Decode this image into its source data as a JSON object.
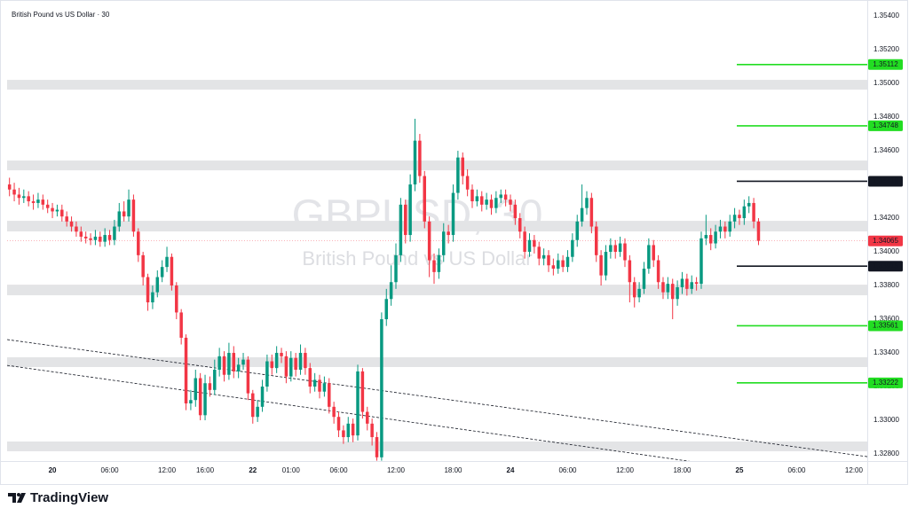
{
  "chart_data": {
    "type": "candlestick",
    "title": "British Pound vs US Dollar · 30",
    "watermark": "GBPUSD, 30",
    "watermark_subtitle": "British Pound vs US Dollar",
    "up_color": "#089981",
    "down_color": "#f23645",
    "xlim": [
      -0.5,
      179.8
    ],
    "ylim": [
      1.32758,
      1.35453
    ],
    "xticks": [
      {
        "value": 9,
        "label": "20"
      },
      {
        "value": 21,
        "label": "06:00"
      },
      {
        "value": 33,
        "label": "12:00"
      },
      {
        "value": 41,
        "label": "16:00"
      },
      {
        "value": 51,
        "label": "22"
      },
      {
        "value": 59,
        "label": "01:00"
      },
      {
        "value": 69,
        "label": "06:00"
      },
      {
        "value": 81,
        "label": "12:00"
      },
      {
        "value": 93,
        "label": "18:00"
      },
      {
        "value": 105,
        "label": "24"
      },
      {
        "value": 117,
        "label": "06:00"
      },
      {
        "value": 129,
        "label": "12:00"
      },
      {
        "value": 141,
        "label": "18:00"
      },
      {
        "value": 153,
        "label": "25"
      },
      {
        "value": 165,
        "label": "06:00"
      },
      {
        "value": 177,
        "label": "12:00"
      }
    ],
    "yticks": [
      {
        "value": 1.354,
        "label": "1.35400"
      },
      {
        "value": 1.352,
        "label": "1.35200"
      },
      {
        "value": 1.35,
        "label": "1.35000"
      },
      {
        "value": 1.348,
        "label": "1.34800"
      },
      {
        "value": 1.346,
        "label": "1.34600"
      },
      {
        "value": 1.344,
        "label": "1.34400"
      },
      {
        "value": 1.342,
        "label": "1.34200"
      },
      {
        "value": 1.34,
        "label": "1.34000"
      },
      {
        "value": 1.338,
        "label": "1.33800"
      },
      {
        "value": 1.336,
        "label": "1.33600"
      },
      {
        "value": 1.334,
        "label": "1.33400"
      },
      {
        "value": 1.332,
        "label": "1.33200"
      },
      {
        "value": 1.33,
        "label": "1.33000"
      },
      {
        "value": 1.328,
        "label": "1.32800"
      }
    ],
    "levels": [
      {
        "value": 1.35112,
        "color": "#22dd22"
      },
      {
        "value": 1.34748,
        "color": "#22dd22"
      },
      {
        "value": 1.34419,
        "color": "#131722"
      },
      {
        "value": 1.33915,
        "color": "#131722"
      },
      {
        "value": 1.33561,
        "color": "#22dd22"
      },
      {
        "value": 1.33222,
        "color": "#22dd22"
      }
    ],
    "zones": [
      [
        1.34963,
        1.35021
      ],
      [
        1.34484,
        1.34542
      ],
      [
        1.34121,
        1.34184
      ],
      [
        1.33742,
        1.33805
      ],
      [
        1.33316,
        1.33374
      ],
      [
        1.32816,
        1.32874
      ]
    ],
    "trendlines": [
      {
        "x": [
          -0.5,
          179.8
        ],
        "y": [
          1.33479,
          1.32784
        ]
      },
      {
        "x": [
          -0.5,
          144.9
        ],
        "y": [
          1.33326,
          1.32747
        ]
      }
    ],
    "open": [
      1.344,
      1.3437,
      1.3434,
      1.3432,
      1.3433,
      1.343,
      1.3429,
      1.3431,
      1.3428,
      1.3426,
      1.3424,
      1.3425,
      1.3421,
      1.3418,
      1.3415,
      1.3412,
      1.3409,
      1.3408,
      1.3407,
      1.3409,
      1.3406,
      1.341,
      1.3407,
      1.3415,
      1.3424,
      1.3421,
      1.3431,
      1.3412,
      1.3398,
      1.3385,
      1.337,
      1.3376,
      1.3385,
      1.3391,
      1.3397,
      1.338,
      1.3364,
      1.3349,
      1.331,
      1.3312,
      1.3325,
      1.3303,
      1.3322,
      1.3318,
      1.333,
      1.3338,
      1.3327,
      1.334,
      1.3329,
      1.3333,
      1.3336,
      1.3316,
      1.3302,
      1.3308,
      1.332,
      1.3335,
      1.3331,
      1.334,
      1.3338,
      1.3326,
      1.3337,
      1.333,
      1.334,
      1.3331,
      1.332,
      1.3324,
      1.3317,
      1.3322,
      1.3308,
      1.3302,
      1.3294,
      1.329,
      1.3298,
      1.3291,
      1.3329,
      1.3305,
      1.3298,
      1.329,
      1.3278,
      1.336,
      1.3372,
      1.3382,
      1.3398,
      1.3428,
      1.341,
      1.344,
      1.3466,
      1.3445,
      1.3418,
      1.3395,
      1.3388,
      1.3398,
      1.3412,
      1.341,
      1.3435,
      1.3456,
      1.3445,
      1.3437,
      1.343,
      1.3433,
      1.3428,
      1.3431,
      1.3426,
      1.3432,
      1.3434,
      1.3431,
      1.3428,
      1.342,
      1.3412,
      1.34,
      1.3407,
      1.3403,
      1.3396,
      1.3398,
      1.3392,
      1.339,
      1.3395,
      1.3391,
      1.3397,
      1.3407,
      1.3418,
      1.3426,
      1.3432,
      1.3415,
      1.3398,
      1.3386,
      1.34,
      1.3404,
      1.34,
      1.3405,
      1.3395,
      1.3382,
      1.3373,
      1.3378,
      1.339,
      1.3404,
      1.3395,
      1.3382,
      1.3376,
      1.3381,
      1.3372,
      1.3379,
      1.3384,
      1.3378,
      1.3382,
      1.3381,
      1.3408,
      1.341,
      1.3405,
      1.3412,
      1.3415,
      1.3412,
      1.3418,
      1.3422,
      1.342,
      1.3427,
      1.3429,
      1.3418
    ],
    "high": [
      1.3444,
      1.3441,
      1.3438,
      1.3437,
      1.3436,
      1.3434,
      1.3435,
      1.3434,
      1.3431,
      1.3429,
      1.3428,
      1.3428,
      1.3424,
      1.3421,
      1.3418,
      1.3415,
      1.3412,
      1.3411,
      1.3413,
      1.3412,
      1.3414,
      1.3413,
      1.3419,
      1.3429,
      1.343,
      1.3437,
      1.3434,
      1.3414,
      1.34,
      1.3387,
      1.338,
      1.3389,
      1.3395,
      1.3403,
      1.3399,
      1.3382,
      1.3366,
      1.3351,
      1.3318,
      1.333,
      1.3328,
      1.3327,
      1.3326,
      1.3336,
      1.3343,
      1.3341,
      1.3346,
      1.3344,
      1.3337,
      1.334,
      1.3338,
      1.3318,
      1.3312,
      1.3324,
      1.3339,
      1.3339,
      1.3344,
      1.3343,
      1.3341,
      1.3341,
      1.334,
      1.3345,
      1.3343,
      1.3334,
      1.3328,
      1.3327,
      1.3326,
      1.3325,
      1.3311,
      1.3305,
      1.3297,
      1.3302,
      1.3301,
      1.3333,
      1.3331,
      1.3308,
      1.3301,
      1.3293,
      1.3364,
      1.3378,
      1.3392,
      1.3405,
      1.3432,
      1.3431,
      1.3446,
      1.3479,
      1.347,
      1.3448,
      1.3421,
      1.3399,
      1.3402,
      1.3417,
      1.3416,
      1.344,
      1.346,
      1.3459,
      1.3449,
      1.344,
      1.3437,
      1.3436,
      1.3435,
      1.3434,
      1.3436,
      1.3437,
      1.3437,
      1.3434,
      1.3431,
      1.3423,
      1.3415,
      1.3411,
      1.341,
      1.3406,
      1.3402,
      1.3401,
      1.3396,
      1.3399,
      1.3398,
      1.3401,
      1.3411,
      1.3422,
      1.344,
      1.3436,
      1.3435,
      1.3418,
      1.3401,
      1.3404,
      1.3408,
      1.3407,
      1.3409,
      1.3408,
      1.3398,
      1.3385,
      1.3382,
      1.3394,
      1.3408,
      1.3407,
      1.3398,
      1.3385,
      1.3385,
      1.3384,
      1.3383,
      1.3388,
      1.3387,
      1.3386,
      1.3385,
      1.3412,
      1.3422,
      1.3414,
      1.3416,
      1.3419,
      1.3418,
      1.3422,
      1.3426,
      1.3425,
      1.3431,
      1.3433,
      1.3432,
      1.342
    ],
    "low": [
      1.3433,
      1.343,
      1.3428,
      1.3429,
      1.3427,
      1.3425,
      1.3426,
      1.3425,
      1.3423,
      1.342,
      1.3421,
      1.3418,
      1.3415,
      1.3412,
      1.3409,
      1.3406,
      1.3405,
      1.3404,
      1.3404,
      1.3403,
      1.3403,
      1.3404,
      1.3404,
      1.3412,
      1.3418,
      1.3418,
      1.3409,
      1.3394,
      1.338,
      1.3365,
      1.3366,
      1.3373,
      1.3382,
      1.3388,
      1.3377,
      1.336,
      1.3345,
      1.3306,
      1.3306,
      1.3308,
      1.33,
      1.33,
      1.3314,
      1.3315,
      1.3326,
      1.3323,
      1.3324,
      1.3325,
      1.3325,
      1.333,
      1.3312,
      1.3298,
      1.3299,
      1.3305,
      1.3317,
      1.3327,
      1.3328,
      1.3334,
      1.3322,
      1.3323,
      1.3326,
      1.3327,
      1.3327,
      1.3316,
      1.3317,
      1.3313,
      1.3314,
      1.3304,
      1.3298,
      1.329,
      1.3286,
      1.3287,
      1.3287,
      1.3288,
      1.3301,
      1.3294,
      1.3285,
      1.3276,
      1.3276,
      1.3356,
      1.3368,
      1.3378,
      1.3394,
      1.3405,
      1.3406,
      1.3436,
      1.3441,
      1.3414,
      1.3385,
      1.3381,
      1.3384,
      1.3394,
      1.3405,
      1.3406,
      1.3431,
      1.344,
      1.3433,
      1.3426,
      1.3427,
      1.3424,
      1.3425,
      1.3422,
      1.3423,
      1.3429,
      1.3427,
      1.3424,
      1.3416,
      1.3408,
      1.3396,
      1.3397,
      1.3399,
      1.3392,
      1.3392,
      1.3388,
      1.3386,
      1.3387,
      1.3388,
      1.3388,
      1.3394,
      1.3403,
      1.3415,
      1.3422,
      1.3411,
      1.3394,
      1.338,
      1.3383,
      1.3396,
      1.3396,
      1.3397,
      1.3391,
      1.337,
      1.3367,
      1.337,
      1.3375,
      1.3387,
      1.3391,
      1.3378,
      1.3372,
      1.3372,
      1.336,
      1.3368,
      1.3375,
      1.3374,
      1.3375,
      1.3377,
      1.3378,
      1.3404,
      1.3401,
      1.3402,
      1.3408,
      1.3408,
      1.3409,
      1.3414,
      1.3416,
      1.3416,
      1.3423,
      1.3414,
      1.3404
    ],
    "close": [
      1.3437,
      1.3434,
      1.3432,
      1.3433,
      1.343,
      1.3429,
      1.3431,
      1.3428,
      1.3426,
      1.3424,
      1.3425,
      1.3421,
      1.3418,
      1.3415,
      1.3412,
      1.3409,
      1.3408,
      1.3407,
      1.3409,
      1.3406,
      1.341,
      1.3407,
      1.3415,
      1.3424,
      1.3421,
      1.3431,
      1.3412,
      1.3398,
      1.3385,
      1.337,
      1.3376,
      1.3385,
      1.3391,
      1.3397,
      1.338,
      1.3364,
      1.3349,
      1.331,
      1.3312,
      1.3325,
      1.3303,
      1.3322,
      1.3318,
      1.333,
      1.3338,
      1.3327,
      1.334,
      1.3329,
      1.3333,
      1.3336,
      1.3316,
      1.3302,
      1.3308,
      1.332,
      1.3335,
      1.3331,
      1.334,
      1.3338,
      1.3326,
      1.3337,
      1.333,
      1.334,
      1.3331,
      1.332,
      1.3324,
      1.3317,
      1.3322,
      1.3308,
      1.3302,
      1.3294,
      1.329,
      1.3298,
      1.3291,
      1.3329,
      1.3305,
      1.3298,
      1.329,
      1.3278,
      1.336,
      1.3372,
      1.3382,
      1.3398,
      1.3428,
      1.341,
      1.344,
      1.3466,
      1.3445,
      1.3418,
      1.3395,
      1.3388,
      1.3398,
      1.3412,
      1.341,
      1.3435,
      1.3456,
      1.3445,
      1.3437,
      1.343,
      1.3433,
      1.3428,
      1.3431,
      1.3426,
      1.3432,
      1.3434,
      1.3431,
      1.3428,
      1.342,
      1.3412,
      1.34,
      1.3407,
      1.3403,
      1.3396,
      1.3398,
      1.3392,
      1.339,
      1.3395,
      1.3391,
      1.3397,
      1.3407,
      1.3418,
      1.3426,
      1.3432,
      1.3415,
      1.3398,
      1.3386,
      1.34,
      1.3404,
      1.34,
      1.3405,
      1.3395,
      1.3382,
      1.3373,
      1.3378,
      1.339,
      1.3404,
      1.3395,
      1.3382,
      1.3376,
      1.3381,
      1.3372,
      1.3379,
      1.3384,
      1.3378,
      1.3382,
      1.3381,
      1.3408,
      1.341,
      1.3405,
      1.3412,
      1.3415,
      1.3412,
      1.3418,
      1.3422,
      1.342,
      1.3427,
      1.3429,
      1.3418,
      1.34065
    ]
  },
  "footer": {
    "brand": "TradingView"
  }
}
